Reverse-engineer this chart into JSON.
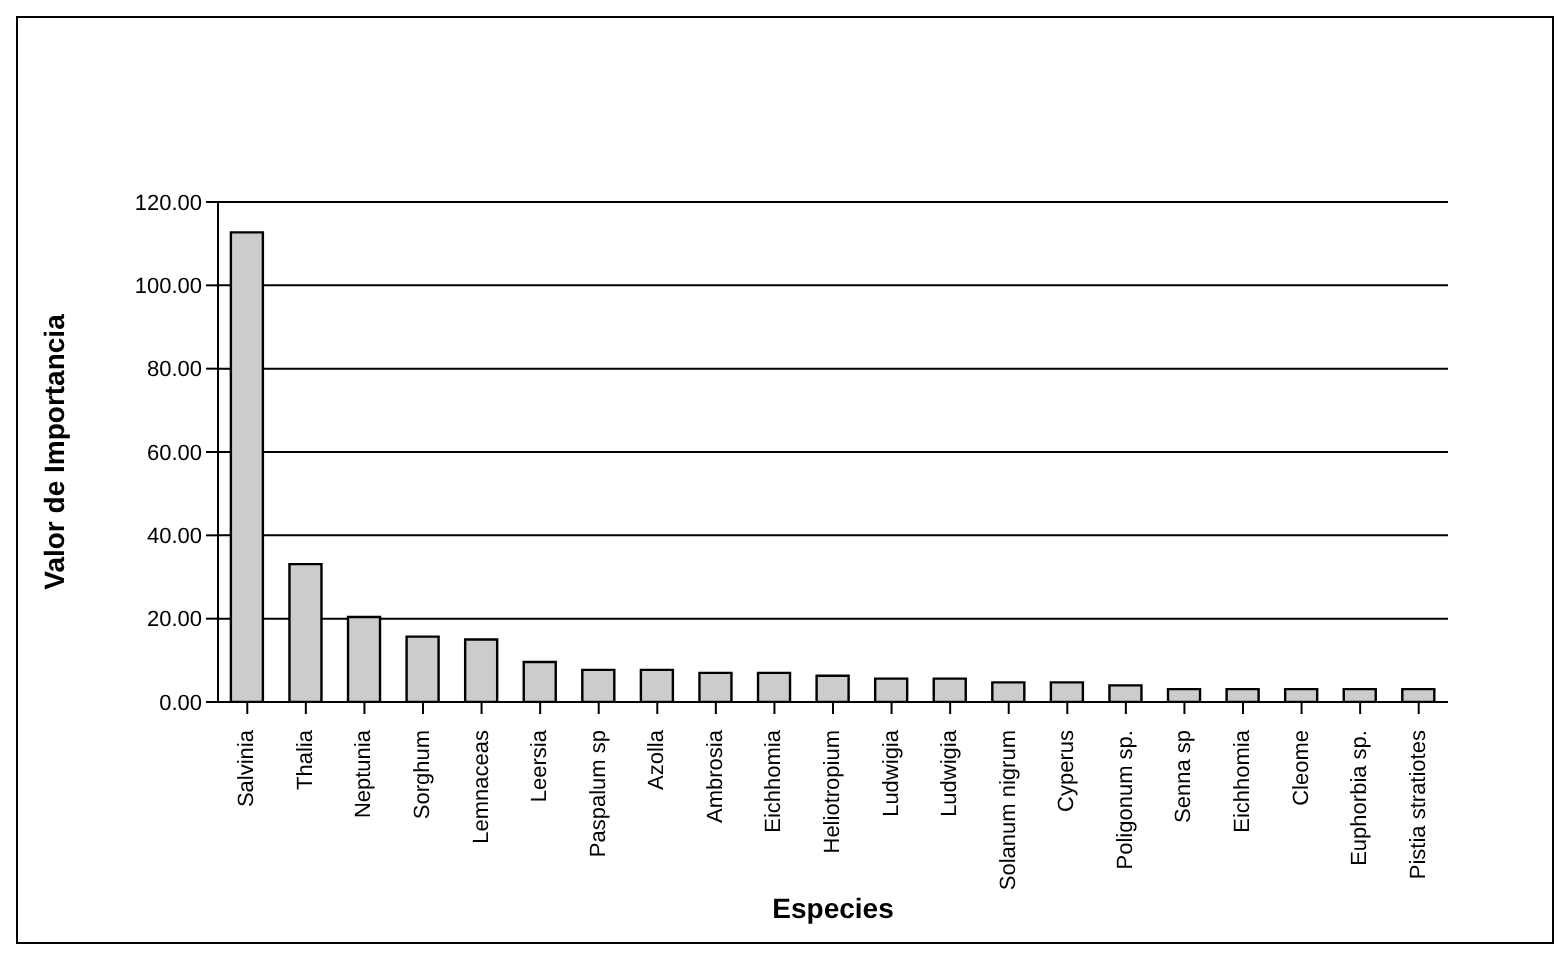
{
  "chart_data": {
    "type": "bar",
    "xlabel": "Especies",
    "ylabel": "Valor de Importancia",
    "categories": [
      "Salvinia",
      "Thalia",
      "Neptunia",
      "Sorghum",
      "Lemnaceas",
      "Leersia",
      "Paspalum sp",
      "Azolla",
      "Ambrosia",
      "Eichhomia",
      "Heliotropium",
      "Ludwigia",
      "Ludwigia",
      "Solanum nigrum",
      "Cyperus",
      "Poligonum sp.",
      "Senna sp",
      "Eichhomia",
      "Cleome",
      "Euphorbia sp.",
      "Pistia stratiotes"
    ],
    "values": [
      112.7,
      33.1,
      20.4,
      15.7,
      15.0,
      9.6,
      7.7,
      7.7,
      7.0,
      7.0,
      6.3,
      5.6,
      5.6,
      4.7,
      4.7,
      4.0,
      3.1,
      3.1,
      3.1,
      3.1,
      3.1
    ],
    "color": "#cccccc",
    "ylim": [
      0,
      120
    ],
    "yticks": [
      {
        "value": 0,
        "label": "0.00"
      },
      {
        "value": 20,
        "label": "20.00"
      },
      {
        "value": 40,
        "label": "40.00"
      },
      {
        "value": 60,
        "label": "60.00"
      },
      {
        "value": 80,
        "label": "80.00"
      },
      {
        "value": 100,
        "label": "100.00"
      },
      {
        "value": 120,
        "label": "120.00"
      }
    ],
    "grid": "y"
  }
}
